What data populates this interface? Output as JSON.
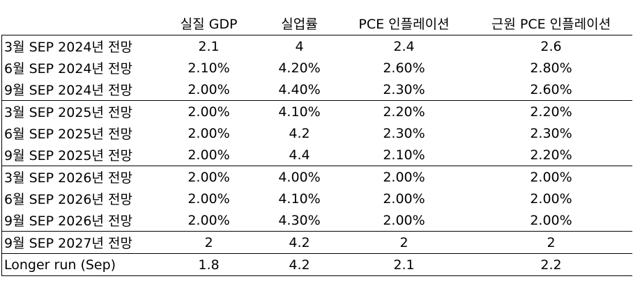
{
  "table": {
    "header": [
      "실질 GDP",
      "실업률",
      "PCE 인플레이션",
      "근원 PCE 인플레이션"
    ],
    "rows": [
      [
        "3월 SEP 2024년 전망",
        "2.1",
        "4",
        "2.4",
        "2.6"
      ],
      [
        "6월 SEP 2024년 전망",
        "2.10%",
        "4.20%",
        "2.60%",
        "2.80%"
      ],
      [
        "9월 SEP 2024년 전망",
        "2.00%",
        "4.40%",
        "2.30%",
        "2.60%"
      ],
      [
        "3월 SEP 2025년 전망",
        "2.00%",
        "4.10%",
        "2.20%",
        "2.20%"
      ],
      [
        "6월 SEP 2025년 전망",
        "2.00%",
        "4.2",
        "2.30%",
        "2.30%"
      ],
      [
        "9월 SEP 2025년 전망",
        "2.00%",
        "4.4",
        "2.10%",
        "2.20%"
      ],
      [
        "3월 SEP 2026년 전망",
        "2.00%",
        "4.00%",
        "2.00%",
        "2.00%"
      ],
      [
        "6월 SEP 2026년 전망",
        "2.00%",
        "4.10%",
        "2.00%",
        "2.00%"
      ],
      [
        "9월 SEP 2026년 전망",
        "2.00%",
        "4.30%",
        "2.00%",
        "2.00%"
      ],
      [
        "9월 SEP 2027년 전망",
        "2",
        "4.2",
        "2",
        "2"
      ],
      [
        "Longer run (Sep)",
        "1.8",
        "4.2",
        "2.1",
        "2.2"
      ]
    ]
  }
}
